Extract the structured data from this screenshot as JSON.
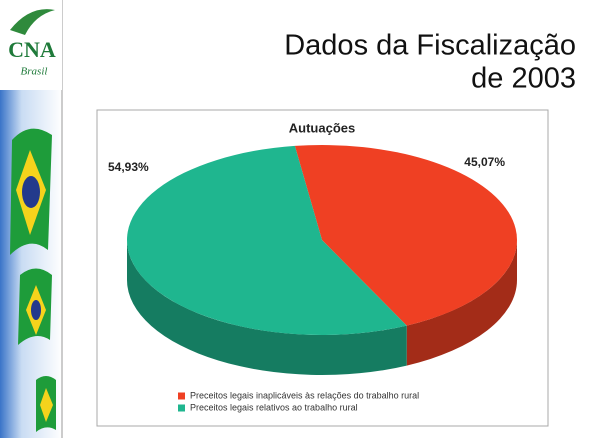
{
  "logo": {
    "text": "CNA",
    "subtext": "Brasil"
  },
  "slide": {
    "title_lines": [
      "Dados da Fiscalização",
      "de 2003"
    ]
  },
  "chart_data": {
    "type": "pie",
    "title": "Autuações",
    "categories": [
      "Preceitos legais inaplicáveis às relações do trabalho rural",
      "Preceitos legais relativos ao trabalho rural"
    ],
    "values": [
      45.07,
      54.93
    ],
    "value_labels": [
      "45,07%",
      "54,93%"
    ],
    "colors": [
      "#ef4023",
      "#1fb68f"
    ]
  }
}
